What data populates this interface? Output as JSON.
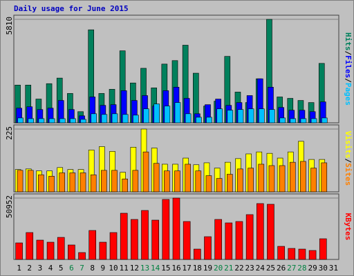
{
  "chart_data": [
    {
      "type": "bar",
      "title": "Daily usage for June 2015",
      "legend_separator": "/",
      "series": [
        {
          "name": "Hits",
          "color": "#00805c",
          "values": [
            2120,
            2120,
            1335,
            2199,
            2513,
            1649,
            628,
            5222,
            1649,
            1884,
            4044,
            2238,
            3062,
            1963,
            3298,
            3494,
            4358,
            2787,
            942,
            1217,
            3730,
            1727,
            1139,
            2473,
            5810,
            1453,
            1374,
            1256,
            1139,
            3337,
            0
          ]
        },
        {
          "name": "Files",
          "color": "#0000ff",
          "values": [
            824,
            903,
            746,
            824,
            1256,
            746,
            393,
            1453,
            981,
            1021,
            1806,
            1256,
            1531,
            942,
            1806,
            2002,
            1374,
            510,
            1021,
            1335,
            981,
            1139,
            1531,
            2473,
            2002,
            864,
            707,
            707,
            628,
            1178,
            0
          ]
        },
        {
          "name": "Pages",
          "color": "#00c0ff",
          "values": [
            275,
            236,
            236,
            236,
            236,
            236,
            196,
            510,
            471,
            510,
            471,
            432,
            785,
            1060,
            942,
            1139,
            510,
            314,
            314,
            785,
            707,
            746,
            785,
            785,
            746,
            275,
            236,
            236,
            236,
            275,
            0
          ]
        }
      ],
      "ylim": [
        0,
        5810
      ],
      "yticks": [
        5810
      ]
    },
    {
      "type": "bar",
      "legend_separator": "/",
      "series": [
        {
          "name": "Visits",
          "color": "#ffff00",
          "values": [
            80,
            82,
            75,
            75,
            87,
            80,
            80,
            150,
            162,
            145,
            70,
            160,
            225,
            157,
            99,
            99,
            121,
            97,
            104,
            85,
            106,
            119,
            136,
            143,
            138,
            121,
            143,
            181,
            116,
            116,
            0
          ]
        },
        {
          "name": "Sites",
          "color": "#ff8000",
          "values": [
            77,
            77,
            61,
            56,
            68,
            68,
            68,
            61,
            77,
            77,
            46,
            77,
            143,
            102,
            75,
            75,
            99,
            75,
            58,
            48,
            63,
            82,
            85,
            99,
            94,
            94,
            106,
            109,
            85,
            104,
            0
          ]
        }
      ],
      "ylim": [
        0,
        225
      ],
      "yticks": [
        225
      ]
    },
    {
      "type": "bar",
      "categories": [
        "1",
        "2",
        "3",
        "4",
        "5",
        "6",
        "7",
        "8",
        "9",
        "10",
        "11",
        "12",
        "13",
        "14",
        "15",
        "16",
        "17",
        "18",
        "19",
        "20",
        "21",
        "22",
        "23",
        "24",
        "25",
        "26",
        "27",
        "28",
        "29",
        "30",
        "31"
      ],
      "category_colors": [
        "#000000",
        "#000000",
        "#000000",
        "#000000",
        "#000000",
        "#008040",
        "#008040",
        "#000000",
        "#000000",
        "#000000",
        "#000000",
        "#000000",
        "#008040",
        "#008040",
        "#000000",
        "#000000",
        "#000000",
        "#000000",
        "#000000",
        "#008040",
        "#008040",
        "#000000",
        "#000000",
        "#000000",
        "#000000",
        "#000000",
        "#008040",
        "#008040",
        "#000000",
        "#000000",
        "#000000"
      ],
      "series": [
        {
          "name": "KBytes",
          "color": "#ff0000",
          "values": [
            13740,
            22328,
            16030,
            14313,
            18320,
            12023,
            5725,
            24045,
            14313,
            22328,
            38358,
            33205,
            40648,
            32633,
            49808,
            50952,
            31488,
            8588,
            18893,
            33205,
            30343,
            31488,
            37213,
            46373,
            45800,
            10878,
            9160,
            8588,
            7443,
            17175,
            0
          ]
        }
      ],
      "ylim": [
        0,
        50952
      ],
      "yticks": [
        50952
      ]
    }
  ]
}
